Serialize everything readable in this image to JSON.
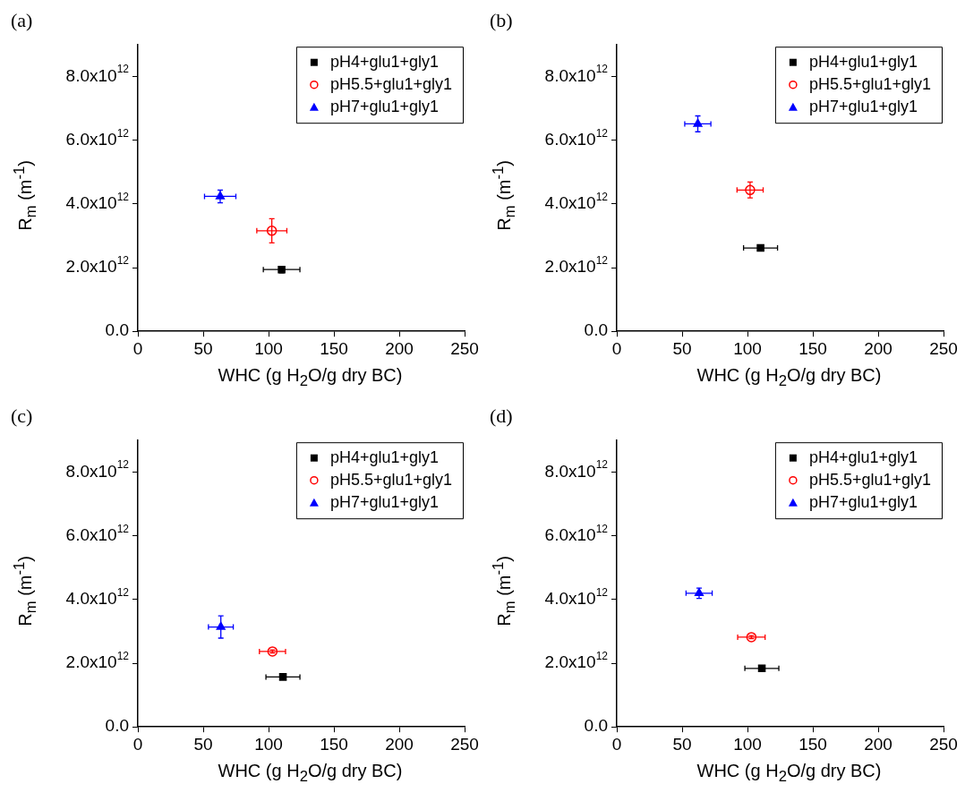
{
  "chart_data": [
    {
      "type": "scatter",
      "title": "(a)",
      "xlabel": "WHC (g H$_{2}$O/g dry BC)",
      "ylabel": "R$_{m}$ (m$^{-1}$)",
      "xlim": [
        0,
        250
      ],
      "xticks": [
        0,
        50,
        100,
        150,
        200,
        250
      ],
      "ylim": [
        0,
        9000000000000.0
      ],
      "yticks": [
        {
          "value": 0,
          "label": "0.0"
        },
        {
          "value": 2000000000000.0,
          "label": "2.0x10$^{12}$"
        },
        {
          "value": 4000000000000.0,
          "label": "4.0x10$^{12}$"
        },
        {
          "value": 6000000000000.0,
          "label": "6.0x10$^{12}$"
        },
        {
          "value": 8000000000000.0,
          "label": "8.0x10$^{12}$"
        }
      ],
      "grid": false,
      "legend": "top right",
      "series": [
        {
          "name": "pH4+glu1+gly1",
          "color": "#000000",
          "marker": "square",
          "x": [
            110
          ],
          "values": [
            1940000000000.0
          ],
          "errors": [
            100000000000.0
          ],
          "xerrors": [
            14
          ]
        },
        {
          "name": "pH5.5+glu1+gly1",
          "color": "#ff0000",
          "marker": "circle",
          "x": [
            102.5
          ],
          "values": [
            3160000000000.0
          ],
          "errors": [
            380000000000.0
          ],
          "xerrors": [
            11.5
          ]
        },
        {
          "name": "pH7+glu1+gly1",
          "color": "#0000ff",
          "marker": "triangle",
          "x": [
            63
          ],
          "values": [
            4240000000000.0
          ],
          "errors": [
            200000000000.0
          ],
          "xerrors": [
            12
          ]
        }
      ]
    },
    {
      "type": "scatter",
      "title": "(b)",
      "xlabel": "WHC (g H$_{2}$O/g dry BC)",
      "ylabel": "R$_{m}$ (m$^{-1}$)",
      "xlim": [
        0,
        250
      ],
      "xticks": [
        0,
        50,
        100,
        150,
        200,
        250
      ],
      "ylim": [
        0,
        9000000000000.0
      ],
      "yticks": [
        {
          "value": 0,
          "label": "0.0"
        },
        {
          "value": 2000000000000.0,
          "label": "2.0x10$^{12}$"
        },
        {
          "value": 4000000000000.0,
          "label": "4.0x10$^{12}$"
        },
        {
          "value": 6000000000000.0,
          "label": "6.0x10$^{12}$"
        },
        {
          "value": 8000000000000.0,
          "label": "8.0x10$^{12}$"
        }
      ],
      "grid": false,
      "legend": "top right",
      "series": [
        {
          "name": "pH4+glu1+gly1",
          "color": "#000000",
          "marker": "square",
          "x": [
            110
          ],
          "values": [
            2620000000000.0
          ],
          "errors": [
            50000000000.0
          ],
          "xerrors": [
            13
          ]
        },
        {
          "name": "pH5.5+glu1+gly1",
          "color": "#ff0000",
          "marker": "circle",
          "x": [
            102
          ],
          "values": [
            4440000000000.0
          ],
          "errors": [
            250000000000.0
          ],
          "xerrors": [
            10
          ]
        },
        {
          "name": "pH7+glu1+gly1",
          "color": "#0000ff",
          "marker": "triangle",
          "x": [
            62
          ],
          "values": [
            6520000000000.0
          ],
          "errors": [
            250000000000.0
          ],
          "xerrors": [
            10
          ]
        }
      ]
    },
    {
      "type": "scatter",
      "title": "(c)",
      "xlabel": "WHC (g H$_{2}$O/g dry BC)",
      "ylabel": "R$_{m}$ (m$^{-1}$)",
      "xlim": [
        0,
        250
      ],
      "xticks": [
        0,
        50,
        100,
        150,
        200,
        250
      ],
      "ylim": [
        0,
        9000000000000.0
      ],
      "yticks": [
        {
          "value": 0,
          "label": "0.0"
        },
        {
          "value": 2000000000000.0,
          "label": "2.0x10$^{12}$"
        },
        {
          "value": 4000000000000.0,
          "label": "4.0x10$^{12}$"
        },
        {
          "value": 6000000000000.0,
          "label": "6.0x10$^{12}$"
        },
        {
          "value": 8000000000000.0,
          "label": "8.0x10$^{12}$"
        }
      ],
      "grid": false,
      "legend": "top right",
      "series": [
        {
          "name": "pH4+glu1+gly1",
          "color": "#000000",
          "marker": "square",
          "x": [
            111
          ],
          "values": [
            1570000000000.0
          ],
          "errors": [
            50000000000.0
          ],
          "xerrors": [
            13
          ]
        },
        {
          "name": "pH5.5+glu1+gly1",
          "color": "#ff0000",
          "marker": "circle",
          "x": [
            103
          ],
          "values": [
            2370000000000.0
          ],
          "errors": [
            50000000000.0
          ],
          "xerrors": [
            10
          ]
        },
        {
          "name": "pH7+glu1+gly1",
          "color": "#0000ff",
          "marker": "triangle",
          "x": [
            63.5
          ],
          "values": [
            3140000000000.0
          ],
          "errors": [
            350000000000.0
          ],
          "xerrors": [
            9.5
          ]
        }
      ]
    },
    {
      "type": "scatter",
      "title": "(d)",
      "xlabel": "WHC (g H$_{2}$O/g dry BC)",
      "ylabel": "R$_{m}$ (m$^{-1}$)",
      "xlim": [
        0,
        250
      ],
      "xticks": [
        0,
        50,
        100,
        150,
        200,
        250
      ],
      "ylim": [
        0,
        9000000000000.0
      ],
      "yticks": [
        {
          "value": 0,
          "label": "0.0"
        },
        {
          "value": 2000000000000.0,
          "label": "2.0x10$^{12}$"
        },
        {
          "value": 4000000000000.0,
          "label": "4.0x10$^{12}$"
        },
        {
          "value": 6000000000000.0,
          "label": "6.0x10$^{12}$"
        },
        {
          "value": 8000000000000.0,
          "label": "8.0x10$^{12}$"
        }
      ],
      "grid": false,
      "legend": "top right",
      "series": [
        {
          "name": "pH4+glu1+gly1",
          "color": "#000000",
          "marker": "square",
          "x": [
            111
          ],
          "values": [
            1840000000000.0
          ],
          "errors": [
            50000000000.0
          ],
          "xerrors": [
            13
          ]
        },
        {
          "name": "pH5.5+glu1+gly1",
          "color": "#ff0000",
          "marker": "circle",
          "x": [
            103
          ],
          "values": [
            2820000000000.0
          ],
          "errors": [
            50000000000.0
          ],
          "xerrors": [
            10.5
          ]
        },
        {
          "name": "pH7+glu1+gly1",
          "color": "#0000ff",
          "marker": "triangle",
          "x": [
            63
          ],
          "values": [
            4200000000000.0
          ],
          "errors": [
            160000000000.0
          ],
          "xerrors": [
            10
          ]
        }
      ]
    }
  ]
}
